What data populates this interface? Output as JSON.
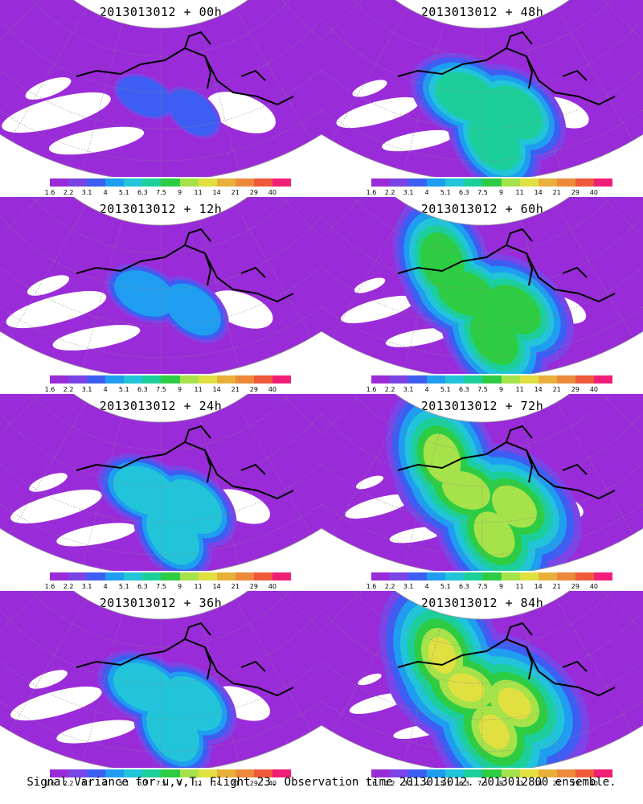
{
  "colorbar": {
    "colors": [
      "#9a2bd9",
      "#7a44e6",
      "#3d5ef2",
      "#1f9df0",
      "#22c4d9",
      "#1ccf9a",
      "#2ecc43",
      "#a6e24a",
      "#e0e040",
      "#e8b03a",
      "#ec8a3a",
      "#f0583c",
      "#ef1f78"
    ],
    "ticks": [
      "1.6",
      "2.2",
      "3.1",
      "4",
      "5.1",
      "6.3",
      "7.5",
      "9",
      "11",
      "14",
      "21",
      "29",
      "40"
    ]
  },
  "panels": [
    {
      "title": "2013013012 + 00h"
    },
    {
      "title": "2013013012 + 48h"
    },
    {
      "title": "2013013012 + 12h"
    },
    {
      "title": "2013013012 + 60h"
    },
    {
      "title": "2013013012 + 24h"
    },
    {
      "title": "2013013012 + 72h"
    },
    {
      "title": "2013013012 + 36h"
    },
    {
      "title": "2013013012 + 84h"
    }
  ],
  "footer": "Signal Variance for u,v,T. Flight 23. Observation time 2013013012. 2013012800 ensemble."
}
